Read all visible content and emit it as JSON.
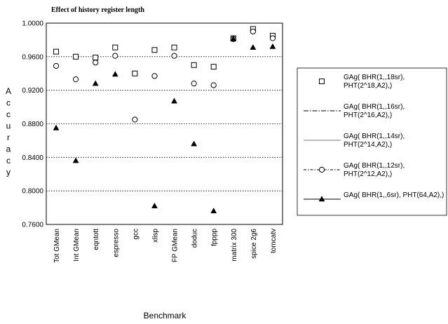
{
  "chart_data": {
    "type": "scatter",
    "title": "Effect of history register length",
    "xlabel": "Benchmark",
    "ylabel": "Accuracy",
    "ylim": [
      0.76,
      1.0
    ],
    "yticks": [
      "0.7600",
      "0.8000",
      "0.8400",
      "0.8800",
      "0.9200",
      "0.9600",
      "1.0000"
    ],
    "grid": "horizontal dotted",
    "legend_position": "right",
    "categories": [
      "Tot GMean",
      "Int GMean",
      "eqntott",
      "espresso",
      "gcc",
      "xlisp",
      "FP GMean",
      "doduc",
      "fpppp",
      "matrix 300",
      "spice 2g6",
      "tomcatv"
    ],
    "series": [
      {
        "name": "GAg( BHR(1,,18sr), PHT(2^18,A2),)",
        "marker": "open-square",
        "values": [
          0.966,
          0.96,
          0.959,
          0.971,
          0.94,
          0.968,
          0.971,
          0.95,
          0.948,
          0.982,
          0.993,
          0.985
        ]
      },
      {
        "name": "GAg( BHR(1,,16sr), PHT(2^16,A2),)",
        "marker": "none",
        "values": [
          null,
          null,
          null,
          null,
          null,
          null,
          null,
          null,
          null,
          null,
          null,
          null
        ]
      },
      {
        "name": "GAg( BHR(1,,14sr), PHT(2^14,A2),)",
        "marker": "none",
        "values": [
          null,
          null,
          null,
          null,
          null,
          null,
          null,
          null,
          null,
          null,
          null,
          null
        ]
      },
      {
        "name": "GAg( BHR(1,,12sr), PHT(2^12,A2),)",
        "marker": "open-circle",
        "values": [
          0.949,
          0.933,
          0.953,
          0.961,
          0.885,
          0.937,
          0.961,
          0.928,
          0.926,
          0.981,
          0.99,
          0.982
        ]
      },
      {
        "name": "GAg( BHR(1,,6sr), PHT(64,A2),)",
        "marker": "filled-triangle",
        "values": [
          0.875,
          0.836,
          0.928,
          0.939,
          null,
          0.782,
          0.907,
          0.856,
          0.776,
          0.981,
          0.971,
          0.972
        ]
      }
    ]
  }
}
